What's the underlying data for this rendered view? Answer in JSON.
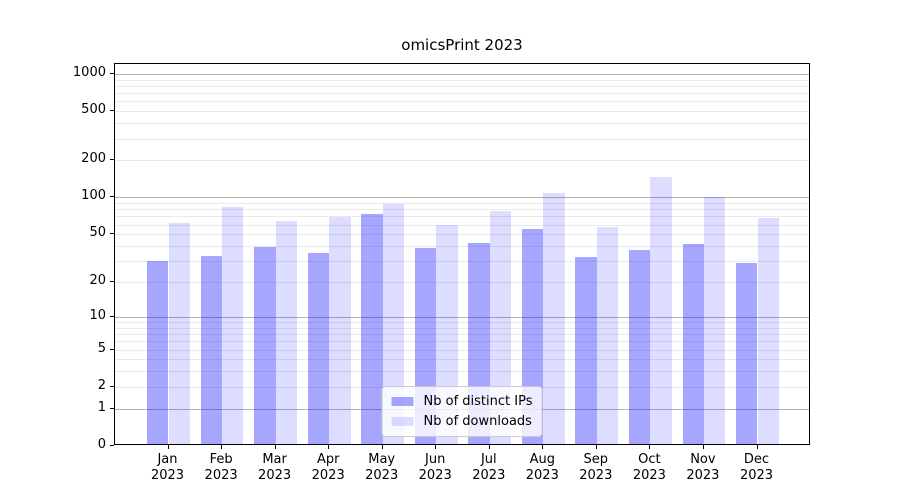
{
  "chart_data": {
    "type": "bar",
    "title": "omicsPrint 2023",
    "categories": [
      "Jan 2023",
      "Feb 2023",
      "Mar 2023",
      "Apr 2023",
      "May 2023",
      "Jun 2023",
      "Jul 2023",
      "Aug 2023",
      "Sep 2023",
      "Oct 2023",
      "Nov 2023",
      "Dec 2023"
    ],
    "series": [
      {
        "name": "Nb of distinct IPs",
        "color": "rgba(0,0,255,0.35)",
        "values": [
          29,
          32,
          38,
          34,
          71,
          37,
          41,
          53,
          31,
          36,
          40,
          28
        ]
      },
      {
        "name": "Nb of downloads",
        "color": "rgba(0,0,255,0.135)",
        "values": [
          60,
          81,
          62,
          67,
          85,
          57,
          75,
          104,
          55,
          142,
          97,
          66
        ]
      }
    ],
    "xlabel": "",
    "ylabel": "",
    "yscale": "log1p",
    "y_ticks": [
      0,
      1,
      2,
      5,
      10,
      20,
      50,
      100,
      200,
      500,
      1000
    ],
    "ylim": [
      0,
      1200
    ],
    "grid": true,
    "grid_minor_color": "#eaeaea",
    "grid_major_color": "#b4b4b4",
    "axis_color": "#000000",
    "background_color": "#ffffff",
    "legend_position": "lower center"
  }
}
